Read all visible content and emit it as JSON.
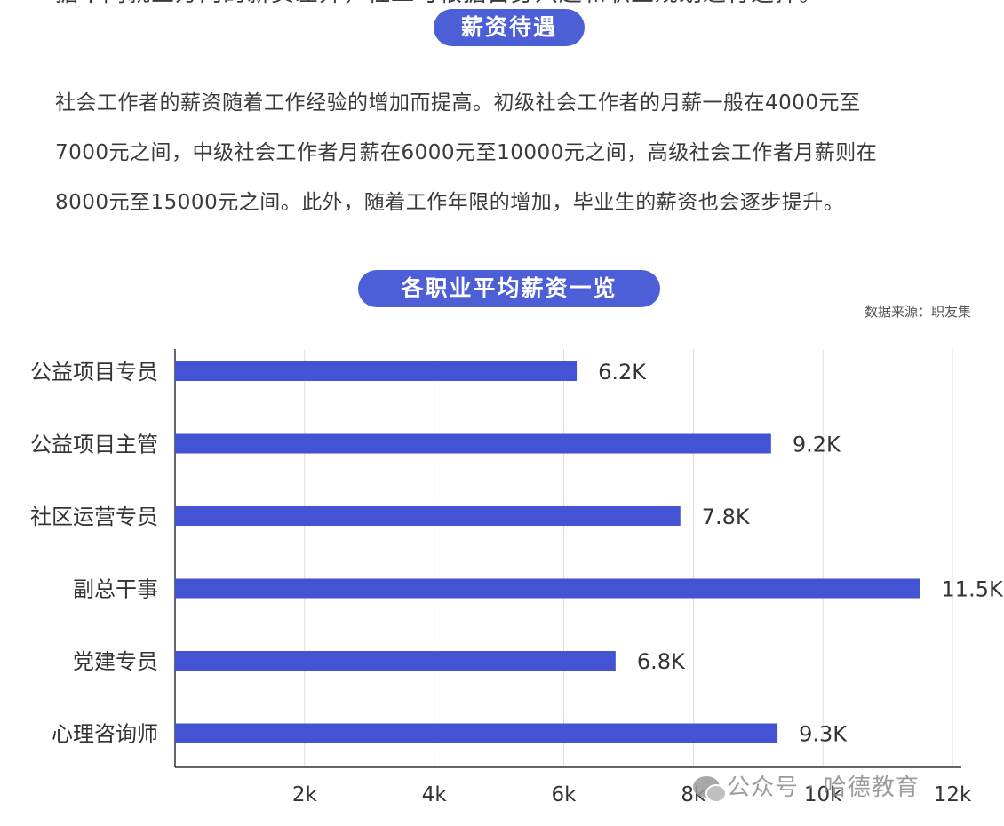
{
  "header": {
    "cut_line": "据不同就业方向的薪资差异，社工可根据自身兴趣和职业规划进行选择。",
    "section_pill": "薪资待遇"
  },
  "paragraph": {
    "line1": "社会工作者的薪资随着工作经验的增加而提高。初级社会工作者的月薪一般在4000元至",
    "line2": "7000元之间，中级社会工作者月薪在6000元至10000元之间，高级社会工作者月薪则在",
    "line3": "8000元至15000元之间。此外，随着工作年限的增加，毕业生的薪资也会逐步提升。"
  },
  "chart_pill": "各职业平均薪资一览",
  "source": "数据来源：职友集",
  "watermark": {
    "icon": "wechat-icon",
    "text": "公众号 · 哈德教育"
  },
  "colors": {
    "accent": "#4c5fd6",
    "bar": "#4452d4",
    "axis": "#333333",
    "grid": "#dddddd"
  },
  "chart_data": {
    "type": "bar",
    "orientation": "horizontal",
    "title": "各职业平均薪资一览",
    "categories": [
      "公益项目专员",
      "公益项目主管",
      "社区运营专员",
      "副总干事",
      "党建专员",
      "心理咨询师"
    ],
    "values": [
      6.2,
      9.2,
      7.8,
      11.5,
      6.8,
      9.3
    ],
    "value_labels": [
      "6.2K",
      "9.2K",
      "7.8K",
      "11.5K",
      "6.8K",
      "9.3K"
    ],
    "xlim": [
      0,
      12
    ],
    "xticks": [
      2,
      4,
      6,
      8,
      10,
      12
    ],
    "xtick_labels": [
      "2k",
      "4k",
      "6k",
      "8k",
      "10k",
      "12k"
    ],
    "grid": "vertical",
    "legend": "none"
  }
}
